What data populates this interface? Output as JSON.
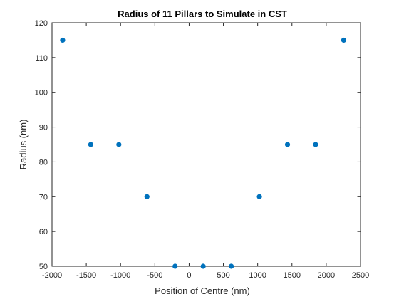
{
  "chart_data": {
    "type": "scatter",
    "title": "Radius of 11 Pillars to Simulate in CST",
    "xlabel": "Position of Centre (nm)",
    "ylabel": "Radius (nm)",
    "xlim": [
      -2000,
      2500
    ],
    "ylim": [
      50,
      120
    ],
    "xticks": [
      -2000,
      -1500,
      -1000,
      -500,
      0,
      500,
      1000,
      1500,
      2000,
      2500
    ],
    "yticks": [
      50,
      60,
      70,
      80,
      90,
      100,
      110,
      120
    ],
    "grid": false,
    "marker_color": "#0072BD",
    "axis_color": "#262626",
    "series": [
      {
        "points": [
          {
            "x": -1845,
            "y": 115
          },
          {
            "x": -1435,
            "y": 85
          },
          {
            "x": -1025,
            "y": 85
          },
          {
            "x": -615,
            "y": 70
          },
          {
            "x": -205,
            "y": 50
          },
          {
            "x": 205,
            "y": 50
          },
          {
            "x": 615,
            "y": 50
          },
          {
            "x": 1025,
            "y": 70
          },
          {
            "x": 1435,
            "y": 85
          },
          {
            "x": 1845,
            "y": 85
          },
          {
            "x": 2255,
            "y": 115
          }
        ]
      }
    ]
  }
}
